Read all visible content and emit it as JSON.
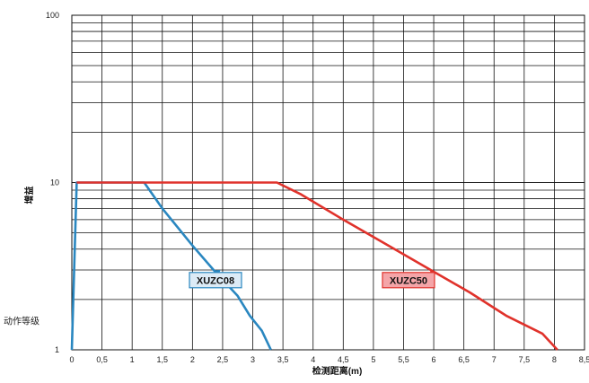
{
  "chart_data": {
    "type": "line",
    "title": "",
    "xlabel": "检测距离(m)",
    "ylabel": "增益",
    "extra_label": "动作等级",
    "xlim": [
      0,
      8.5
    ],
    "ylim": [
      1,
      100
    ],
    "yscale": "log",
    "grid": true,
    "x_ticks": [
      "0",
      "0,5",
      "1",
      "1,5",
      "2",
      "2,5",
      "3",
      "3,5",
      "4",
      "4,5",
      "5",
      "5,5",
      "6",
      "6,5",
      "7",
      "7,5",
      "8",
      "8,5"
    ],
    "x_tick_values": [
      0,
      0.5,
      1,
      1.5,
      2,
      2.5,
      3,
      3.5,
      4,
      4.5,
      5,
      5.5,
      6,
      6.5,
      7,
      7.5,
      8,
      8.5
    ],
    "y_ticks": [
      "1",
      "10",
      "100"
    ],
    "y_tick_values": [
      1,
      10,
      100
    ],
    "series": [
      {
        "name": "XUZC08",
        "color": "#2a87c0",
        "label_fill": "#dcebf6",
        "label_anchor": [
          1.95,
          2.35
        ],
        "arrow_to": [
          2.35,
          2.98
        ],
        "x": [
          0.0,
          0.08,
          1.2,
          1.5,
          2.0,
          2.35,
          2.75,
          2.95,
          3.15,
          3.3
        ],
        "y": [
          1.0,
          10.0,
          10.0,
          7.0,
          4.2,
          3.0,
          2.1,
          1.6,
          1.3,
          1.0
        ]
      },
      {
        "name": "XUZC50",
        "color": "#e0322b",
        "label_fill": "#f4a5a8",
        "label_anchor": [
          5.15,
          2.35
        ],
        "arrow_to": [
          5.95,
          3.0
        ],
        "x": [
          0.08,
          3.4,
          3.8,
          4.5,
          5.3,
          5.95,
          6.6,
          7.2,
          7.8,
          8.05
        ],
        "y": [
          10.0,
          10.0,
          8.5,
          6.0,
          4.1,
          3.0,
          2.2,
          1.6,
          1.25,
          1.0
        ]
      }
    ]
  }
}
